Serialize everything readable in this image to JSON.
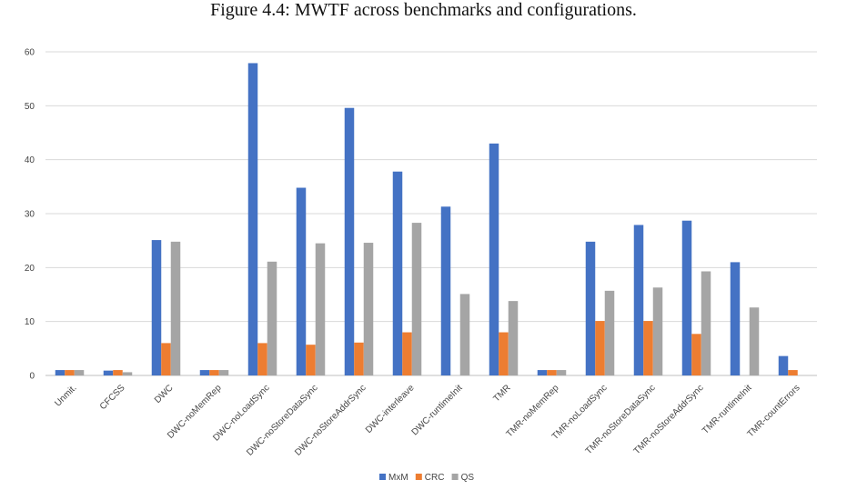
{
  "caption": "Figure 4.4: MWTF across benchmarks and configurations.",
  "chart_data": {
    "type": "bar",
    "title": "",
    "xlabel": "",
    "ylabel": "",
    "ylim": [
      0,
      60
    ],
    "yticks": [
      0,
      10,
      20,
      30,
      40,
      50,
      60
    ],
    "grid": true,
    "legend_position": "bottom",
    "categories": [
      "Unmit.",
      "CFCSS",
      "DWC",
      "DWC-noMemRep",
      "DWC-noLoadSync",
      "DWC-noStoreDataSync",
      "DWC-noStoreAddrSync",
      "DWC-interleave",
      "DWC-runtimeInit",
      "TMR",
      "TMR-noMemRep",
      "TMR-noLoadSync",
      "TMR-noStoreDataSync",
      "TMR-noStoreAddrSync",
      "TMR-runtimeInit",
      "TMR-countErrors"
    ],
    "series": [
      {
        "name": "MxM",
        "color": "#4472C4",
        "values": [
          1.0,
          0.9,
          25.1,
          1.0,
          57.9,
          34.8,
          49.6,
          37.8,
          31.3,
          43.0,
          1.0,
          24.8,
          27.9,
          28.7,
          21.0,
          3.6
        ]
      },
      {
        "name": "CRC",
        "color": "#ED7D31",
        "values": [
          1.0,
          1.0,
          6.0,
          1.0,
          6.0,
          5.7,
          6.1,
          8.0,
          0,
          8.0,
          1.0,
          10.1,
          10.1,
          7.7,
          0,
          1.0
        ]
      },
      {
        "name": "QS",
        "color": "#A5A5A5",
        "values": [
          1.0,
          0.6,
          24.8,
          1.0,
          21.1,
          24.5,
          24.6,
          28.3,
          15.1,
          13.8,
          1.0,
          15.7,
          16.3,
          19.3,
          12.6,
          0
        ]
      }
    ]
  }
}
